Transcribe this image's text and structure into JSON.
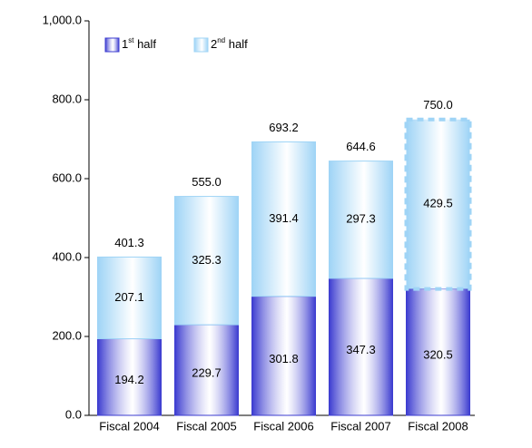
{
  "chart_data": {
    "type": "stacked_bar",
    "categories": [
      "Fiscal 2004",
      "Fiscal 2005",
      "Fiscal 2006",
      "Fiscal 2007",
      "Fiscal 2008"
    ],
    "series": [
      {
        "name": "1st half",
        "color": "#3c3cd0",
        "values": [
          194.2,
          229.7,
          301.8,
          347.3,
          320.5
        ],
        "dashed": [
          false,
          false,
          false,
          false,
          false
        ]
      },
      {
        "name": "2nd half",
        "color": "#9fd4f6",
        "values": [
          207.1,
          325.3,
          391.4,
          297.3,
          429.5
        ],
        "dashed": [
          false,
          false,
          false,
          false,
          true
        ]
      }
    ],
    "totals": {
      "values": [
        401.3,
        555,
        693.2,
        644.6,
        750
      ],
      "value_labels": [
        "401.3",
        "555.0",
        "693.2",
        "644.6",
        "750.0"
      ],
      "color": "#1a1a80"
    },
    "ylim": [
      0,
      1000
    ],
    "yticks": [
      {
        "value": 0,
        "label": "0.0"
      },
      {
        "value": 200,
        "label": "200.0"
      },
      {
        "value": 400,
        "label": "400.0"
      },
      {
        "value": 600,
        "label": "600.0"
      },
      {
        "value": 800,
        "label": "800.0"
      },
      {
        "value": 1000,
        "label": "1,000.0"
      }
    ],
    "grid": false,
    "legend": "top-left"
  }
}
